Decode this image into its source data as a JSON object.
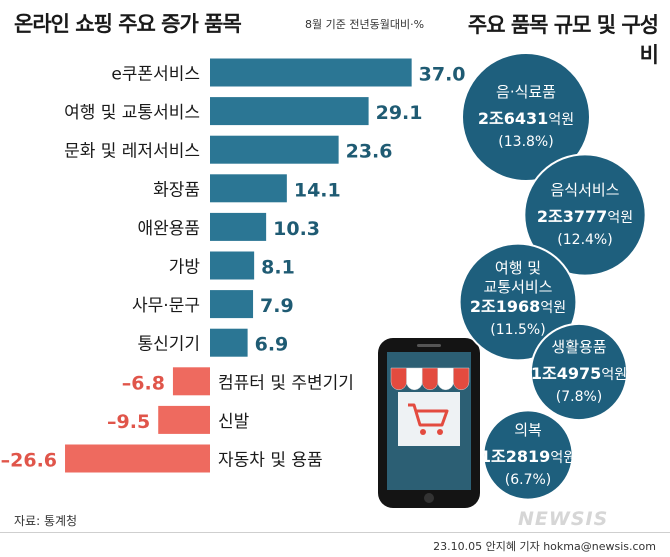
{
  "header": {
    "title": "온라인 쇼핑 주요 증가 품목",
    "subtitle": "8월 기준 전년동월대비·%",
    "right_title": "주요 품목 규모 및 구성비"
  },
  "footer": {
    "source": "자료: 통계청",
    "credit": "23.10.05 안지혜 기자 hokma@newsis.com",
    "watermark": "NEWSIS"
  },
  "colors": {
    "positive_bar": "#2b7694",
    "negative_bar": "#ee6a5f",
    "positive_text": "#1f5b73",
    "negative_text": "#e0554a",
    "circle_fill": "#1e5f7d",
    "circle_stroke": "#ffffff"
  },
  "chart_data": [
    {
      "type": "bar",
      "orientation": "horizontal",
      "categories": [
        "e쿠폰서비스",
        "여행 및 교통서비스",
        "문화 및 레저서비스",
        "화장품",
        "애완용품",
        "가방",
        "사무·문구",
        "통신기기",
        "컴퓨터 및 주변기기",
        "신발",
        "자동차 및 용품"
      ],
      "values": [
        37.0,
        29.1,
        23.6,
        14.1,
        10.3,
        8.1,
        7.9,
        6.9,
        -6.8,
        -9.5,
        -26.6
      ],
      "value_labels": [
        "37.0",
        "29.1",
        "23.6",
        "14.1",
        "10.3",
        "8.1",
        "7.9",
        "6.9",
        "–6.8",
        "–9.5",
        "–26.6"
      ],
      "grid": false
    },
    {
      "type": "bubble",
      "items": [
        {
          "name": "음·식료품",
          "amount_prefix": "2조",
          "amount_number": "6431",
          "amount_unit": "억원",
          "share": "(13.8%)",
          "share_pct": 13.8
        },
        {
          "name": "음식서비스",
          "amount_prefix": "2조",
          "amount_number": "3777",
          "amount_unit": "억원",
          "share": "(12.4%)",
          "share_pct": 12.4
        },
        {
          "name": "여행 및\n교통서비스",
          "amount_prefix": "2조",
          "amount_number": "1968",
          "amount_unit": "억원",
          "share": "(11.5%)",
          "share_pct": 11.5
        },
        {
          "name": "생활용품",
          "amount_prefix": "1조",
          "amount_number": "4975",
          "amount_unit": "억원",
          "share": "(7.8%)",
          "share_pct": 7.8
        },
        {
          "name": "의복",
          "amount_prefix": "1조",
          "amount_number": "2819",
          "amount_unit": "억원",
          "share": "(6.7%)",
          "share_pct": 6.7
        }
      ]
    }
  ]
}
